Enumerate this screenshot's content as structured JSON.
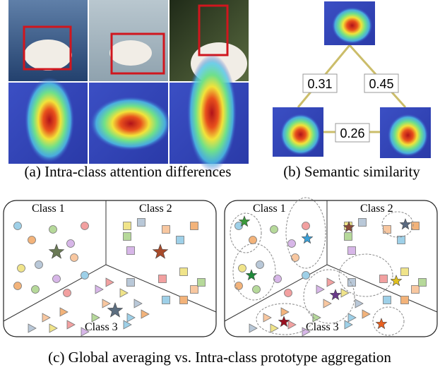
{
  "figure": {
    "panel_a": {
      "caption": "(a) Intra-class attention differences"
    },
    "panel_b": {
      "caption": "(b) Semantic similarity",
      "similarities": [
        0.31,
        0.45,
        0.26
      ]
    },
    "panel_c": {
      "caption": "(c) Global averaging vs. Intra-class prototype aggregation",
      "left": {
        "classes": [
          "Class 1",
          "Class 2",
          "Class 3"
        ]
      },
      "right": {
        "classes": [
          "Class 1",
          "Class 2",
          "Class 3"
        ]
      }
    }
  }
}
